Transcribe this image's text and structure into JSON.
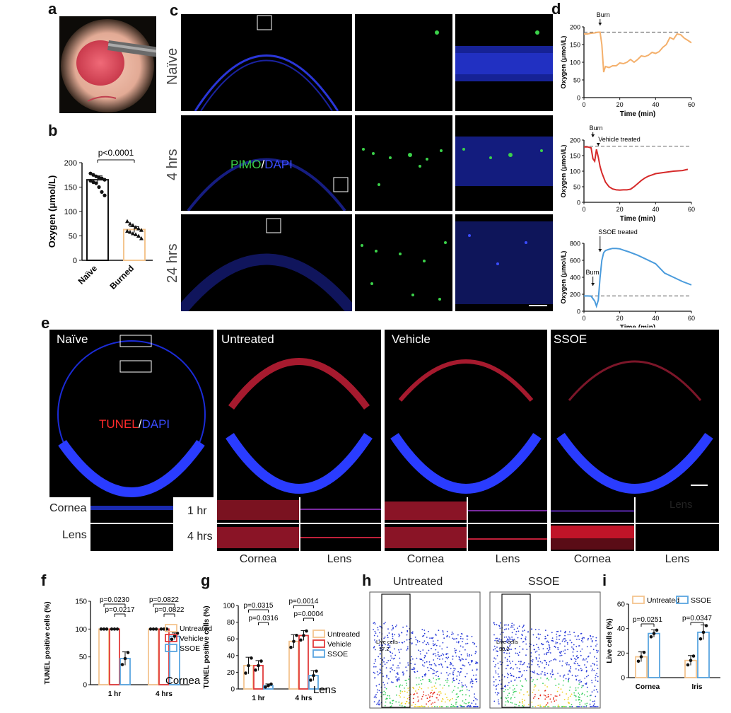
{
  "panels": {
    "a": "a",
    "b": "b",
    "c": "c",
    "d": "d",
    "e": "e",
    "f": "f",
    "g": "g",
    "h": "h",
    "i": "i"
  },
  "c": {
    "rows": [
      "Naïve",
      "4 hrs",
      "24 hrs"
    ],
    "stain_pimo": "PIMO",
    "stain_sep": "/",
    "stain_dapi": "DAPI"
  },
  "e": {
    "columns": [
      "Naïve",
      "Untreated",
      "Vehicle",
      "SSOE"
    ],
    "stain_tunel": "TUNEL",
    "stain_sep": "/",
    "stain_dapi": "DAPI",
    "row_labels": [
      "Cornea",
      "Lens"
    ],
    "time_labels": [
      "1 hr",
      "4 hrs"
    ],
    "bottom_labels": [
      "Cornea",
      "Lens",
      "Cornea",
      "Lens",
      "Cornea",
      "Lens"
    ],
    "faint_label": "Lens"
  },
  "h": {
    "titles": [
      "Untreated",
      "SSOE"
    ],
    "gate_label": "Live cells",
    "values": [
      "17.2",
      "30.2"
    ]
  },
  "colors": {
    "untreated": "#f4c58f",
    "vehicle": "#e23a3a",
    "ssoe": "#5aa5e0",
    "naive_bar": "#111111",
    "burned_bar": "#f4c58f"
  },
  "chart_data": [
    {
      "id": "b",
      "type": "bar",
      "categories": [
        "Naïve",
        "Burned"
      ],
      "values": [
        165,
        63
      ],
      "errors": [
        8,
        6
      ],
      "points": [
        [
          178,
          175,
          172,
          170,
          168,
          165,
          163,
          160,
          158,
          150,
          140,
          133
        ],
        [
          80,
          75,
          72,
          68,
          65,
          62,
          60,
          58,
          55,
          53,
          50,
          45
        ]
      ],
      "ylabel": "Oxygen (μmol/L)",
      "ylim": [
        0,
        200
      ],
      "yticks": [
        0,
        50,
        100,
        150,
        200
      ],
      "annotations": [
        "p<0.0001"
      ]
    },
    {
      "id": "d1",
      "type": "line",
      "xlabel": "Time (min)",
      "ylabel": "Oxygen (μmol/L)",
      "xlim": [
        0,
        60
      ],
      "ylim": [
        0,
        200
      ],
      "xticks": [
        0,
        20,
        40,
        60
      ],
      "yticks": [
        0,
        50,
        100,
        150,
        200
      ],
      "baseline": 185,
      "color": "#f4b06c",
      "x": [
        0,
        2,
        4,
        6,
        8,
        9,
        10,
        11,
        12,
        14,
        16,
        18,
        20,
        22,
        24,
        26,
        28,
        30,
        32,
        34,
        36,
        38,
        40,
        42,
        44,
        46,
        48,
        50,
        52,
        54,
        56,
        58,
        60
      ],
      "y": [
        180,
        180,
        182,
        183,
        185,
        185,
        150,
        72,
        88,
        85,
        90,
        90,
        98,
        96,
        100,
        108,
        100,
        108,
        118,
        116,
        120,
        128,
        125,
        130,
        142,
        150,
        170,
        165,
        180,
        178,
        168,
        162,
        155
      ],
      "annotations": [
        "Burn"
      ]
    },
    {
      "id": "d2",
      "type": "line",
      "xlabel": "Time (min)",
      "ylabel": "Oxygen (μmol/L)",
      "xlim": [
        0,
        60
      ],
      "ylim": [
        0,
        200
      ],
      "xticks": [
        0,
        20,
        40,
        60
      ],
      "yticks": [
        0,
        50,
        100,
        150,
        200
      ],
      "baseline": 180,
      "color": "#d62a2a",
      "x": [
        0,
        2,
        4,
        5,
        6,
        7,
        8,
        9,
        10,
        12,
        14,
        16,
        18,
        20,
        22,
        24,
        26,
        28,
        30,
        32,
        34,
        36,
        38,
        40,
        45,
        50,
        55,
        58
      ],
      "y": [
        178,
        178,
        175,
        140,
        132,
        170,
        145,
        115,
        95,
        65,
        50,
        43,
        40,
        39,
        40,
        40,
        42,
        50,
        60,
        70,
        78,
        84,
        88,
        92,
        96,
        100,
        102,
        106
      ],
      "annotations": [
        "Burn",
        "Vehicle treated"
      ]
    },
    {
      "id": "d3",
      "type": "line",
      "xlabel": "Time (min)",
      "ylabel": "Oxygen (μmol/L)",
      "xlim": [
        0,
        60
      ],
      "ylim": [
        0,
        800
      ],
      "xticks": [
        0,
        20,
        40,
        60
      ],
      "yticks": [
        0,
        200,
        400,
        600,
        800
      ],
      "baseline": 180,
      "color": "#4a9bdc",
      "x": [
        0,
        2,
        4,
        6,
        7,
        8,
        9,
        10,
        11,
        12,
        14,
        16,
        18,
        20,
        22,
        25,
        30,
        35,
        40,
        45,
        50,
        55,
        60
      ],
      "y": [
        180,
        180,
        178,
        120,
        60,
        130,
        400,
        600,
        690,
        715,
        730,
        740,
        740,
        735,
        720,
        700,
        660,
        610,
        560,
        450,
        400,
        350,
        310
      ],
      "annotations": [
        "Burn",
        "SSOE treated"
      ]
    },
    {
      "id": "f",
      "type": "bar",
      "categories": [
        "1 hr",
        "4 hrs"
      ],
      "series": [
        {
          "name": "Untreated",
          "values": [
            100,
            100
          ],
          "errors": [
            0,
            0
          ]
        },
        {
          "name": "Vehicle",
          "values": [
            100,
            100
          ],
          "errors": [
            0,
            0
          ]
        },
        {
          "name": "SSOE",
          "values": [
            47,
            87
          ],
          "errors": [
            12,
            6
          ]
        }
      ],
      "ylabel": "TUNEL positive cells (%)",
      "ylim": [
        0,
        150
      ],
      "yticks": [
        0,
        50,
        100,
        150
      ],
      "annotations": [
        "p=0.0230",
        "p=0.0217",
        "p=0.0822",
        "p=0.0822"
      ],
      "tissue": "Cornea"
    },
    {
      "id": "g",
      "type": "bar",
      "categories": [
        "1 hr",
        "4 hrs"
      ],
      "series": [
        {
          "name": "Untreated",
          "values": [
            28,
            57
          ],
          "errors": [
            10,
            8
          ]
        },
        {
          "name": "Vehicle",
          "values": [
            28,
            64
          ],
          "errors": [
            6,
            6
          ]
        },
        {
          "name": "SSOE",
          "values": [
            4,
            16
          ],
          "errors": [
            2,
            6
          ]
        }
      ],
      "ylabel": "TUNEL positive cells (%)",
      "ylim": [
        0,
        100
      ],
      "yticks": [
        0,
        20,
        40,
        60,
        80,
        100
      ],
      "annotations": [
        "p=0.0315",
        "p=0.0316",
        "p=0.0014",
        "p=0.0004"
      ],
      "tissue": "Lens"
    },
    {
      "id": "i",
      "type": "bar",
      "categories": [
        "Cornea",
        "Iris"
      ],
      "series": [
        {
          "name": "Untreated",
          "values": [
            17,
            14
          ],
          "errors": [
            4,
            4
          ]
        },
        {
          "name": "SSOE",
          "values": [
            36,
            37
          ],
          "errors": [
            3,
            6
          ]
        }
      ],
      "ylabel": "Live cells (%)",
      "ylim": [
        0,
        60
      ],
      "yticks": [
        0,
        20,
        40,
        60
      ],
      "annotations": [
        "p=0.0251",
        "p=0.0347"
      ]
    }
  ]
}
